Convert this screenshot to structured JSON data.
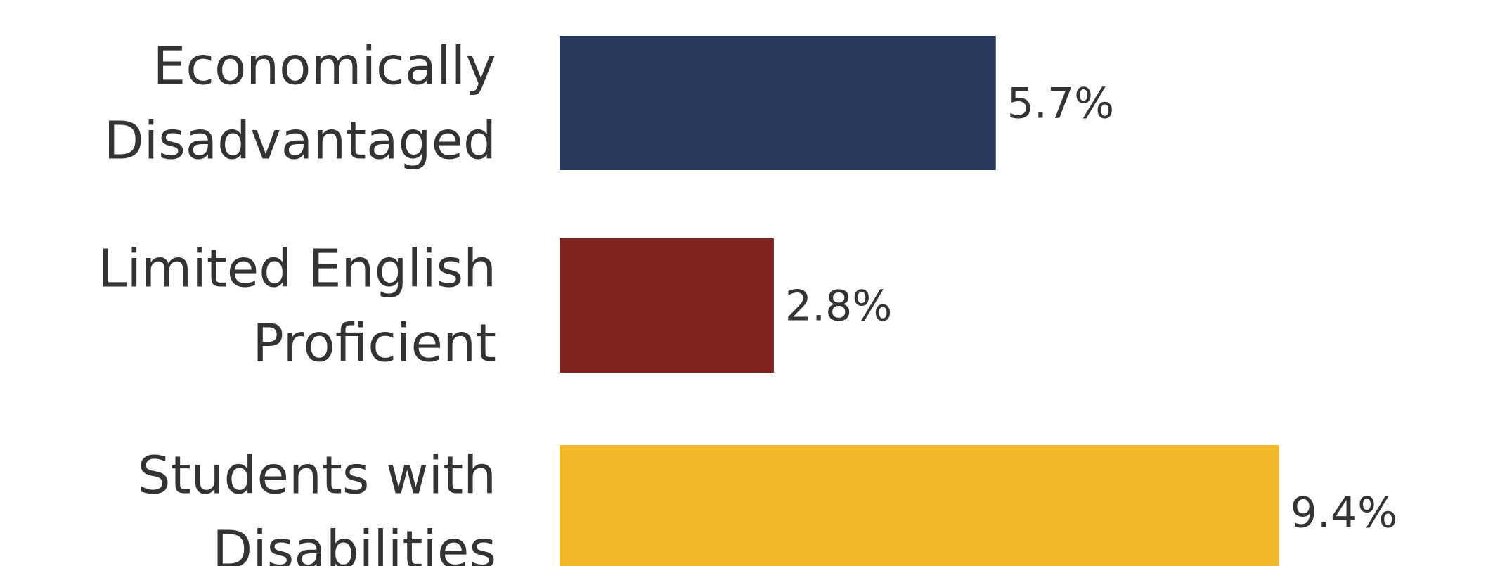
{
  "chart_data": {
    "type": "bar",
    "orientation": "horizontal",
    "categories": [
      [
        "Economically",
        "Disadvantaged"
      ],
      [
        "Limited English",
        "Proficient"
      ],
      [
        "Students with",
        "Disabilities"
      ]
    ],
    "values": [
      5.7,
      2.8,
      9.4
    ],
    "value_labels": [
      "5.7%",
      "2.8%",
      "9.4%"
    ],
    "colors": [
      "#283a5b",
      "#80231f",
      "#f3b92d"
    ],
    "title": "",
    "xlabel": "",
    "ylabel": "",
    "grid": false,
    "legend": "none"
  }
}
